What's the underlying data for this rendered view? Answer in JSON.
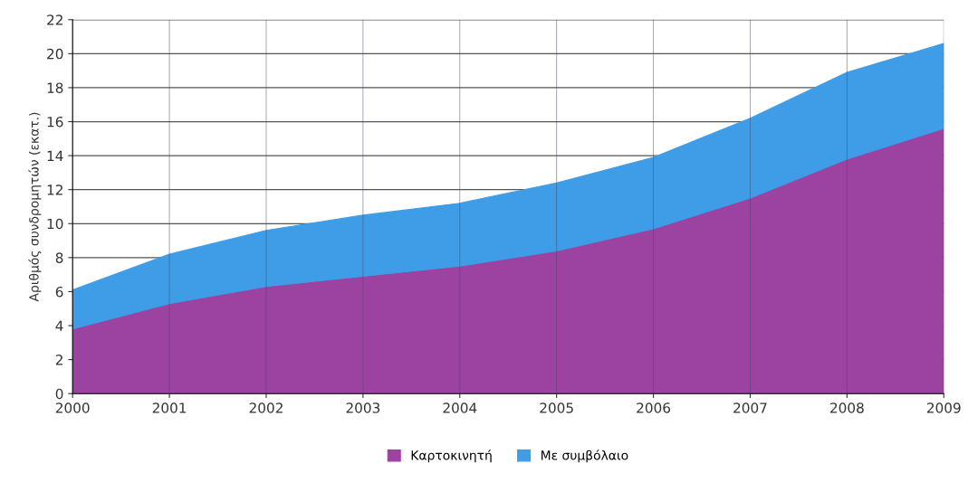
{
  "chart_data": {
    "type": "area",
    "stacked": true,
    "ylabel": "Αριθμός συνδρομητών (εκατ.)",
    "categories": [
      "2000",
      "2001",
      "2002",
      "2003",
      "2004",
      "2005",
      "2006",
      "2007",
      "2008",
      "2009"
    ],
    "series": [
      {
        "name": "Καρτοκινητή",
        "color": "#9c42a0",
        "values": [
          3.8,
          5.3,
          6.3,
          6.9,
          7.5,
          8.4,
          9.7,
          11.5,
          13.8,
          15.6
        ]
      },
      {
        "name": "Με συμβόλαιο",
        "color": "#3e9de6",
        "values": [
          2.3,
          2.9,
          3.3,
          3.6,
          3.7,
          4.0,
          4.2,
          4.7,
          5.1,
          5.0
        ]
      }
    ],
    "ylim": [
      0,
      22
    ],
    "yticks": [
      0,
      2,
      4,
      6,
      8,
      10,
      12,
      14,
      16,
      18,
      20,
      22
    ],
    "grid": true,
    "legend": "bottom"
  }
}
